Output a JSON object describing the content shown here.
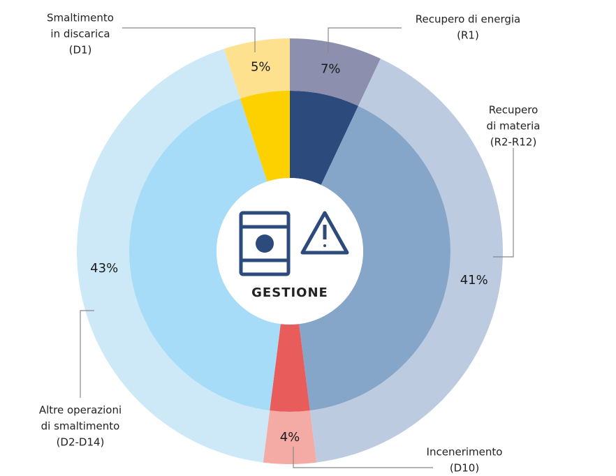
{
  "chart_data": {
    "type": "pie",
    "donut": true,
    "center_label": "GESTIONE",
    "categories": [
      [
        "Recupero di energia",
        "(R1)"
      ],
      [
        "Recupero",
        "di materia",
        "(R2-R12)"
      ],
      [
        "Incenerimento",
        "(D10)"
      ],
      [
        "Altre operazioni",
        "di smaltimento",
        "(D2-D14)"
      ],
      [
        "Smaltimento",
        "in discarica",
        "(D1)"
      ]
    ],
    "values": [
      7,
      41,
      4,
      43,
      5
    ],
    "value_labels": [
      "7%",
      "41%",
      "4%",
      "43%",
      "5%"
    ],
    "colors": [
      "#8c8fae",
      "#bccbe0",
      "#f4aaa5",
      "#cde9f8",
      "#fde18f"
    ],
    "inner_colors": [
      "#2c4a7c",
      "#85a5c9",
      "#e85c5c",
      "#a6dcf7",
      "#fdd000"
    ]
  }
}
